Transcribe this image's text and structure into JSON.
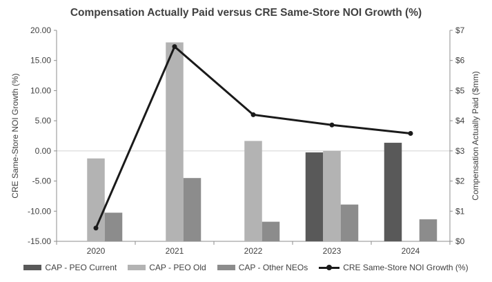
{
  "chart_data": {
    "type": "bar",
    "title": "Compensation Actually Paid versus CRE Same-Store NOI Growth (%)",
    "ylabel": "CRE  Same-Store  NOI Growth  (%)",
    "y2label": "Compensation  Actually Paid ($mm)",
    "categories": [
      "2020",
      "2021",
      "2022",
      "2023",
      "2024"
    ],
    "ylim": [
      -15,
      20
    ],
    "y_ticks": [
      "20.00",
      "15.00",
      "10.00",
      "5.00",
      "0.00",
      "-5.00",
      "-10.00",
      "-15.00"
    ],
    "y2lim": [
      0,
      7
    ],
    "y2_ticks": [
      "$7",
      "$6",
      "$5",
      "$4",
      "$3",
      "$2",
      "$1",
      "$0"
    ],
    "series": [
      {
        "name": "CAP - PEO Current",
        "color": "#595959",
        "axis": "right",
        "values": [
          null,
          null,
          null,
          2.95,
          3.27
        ]
      },
      {
        "name": "CAP - PEO Old",
        "color": "#b3b3b3",
        "axis": "right",
        "values": [
          2.75,
          6.6,
          3.33,
          3.0,
          null
        ]
      },
      {
        "name": "CAP - Other NEOs",
        "color": "#8c8c8c",
        "axis": "right",
        "values": [
          0.95,
          2.1,
          0.65,
          1.22,
          0.73
        ]
      },
      {
        "name": "CRE Same-Store NOI Growth (%)",
        "color": "#1a1a1a",
        "type": "line",
        "axis": "left",
        "values": [
          -12.8,
          17.3,
          6.0,
          4.3,
          2.9
        ]
      }
    ],
    "legend_position": "bottom"
  }
}
